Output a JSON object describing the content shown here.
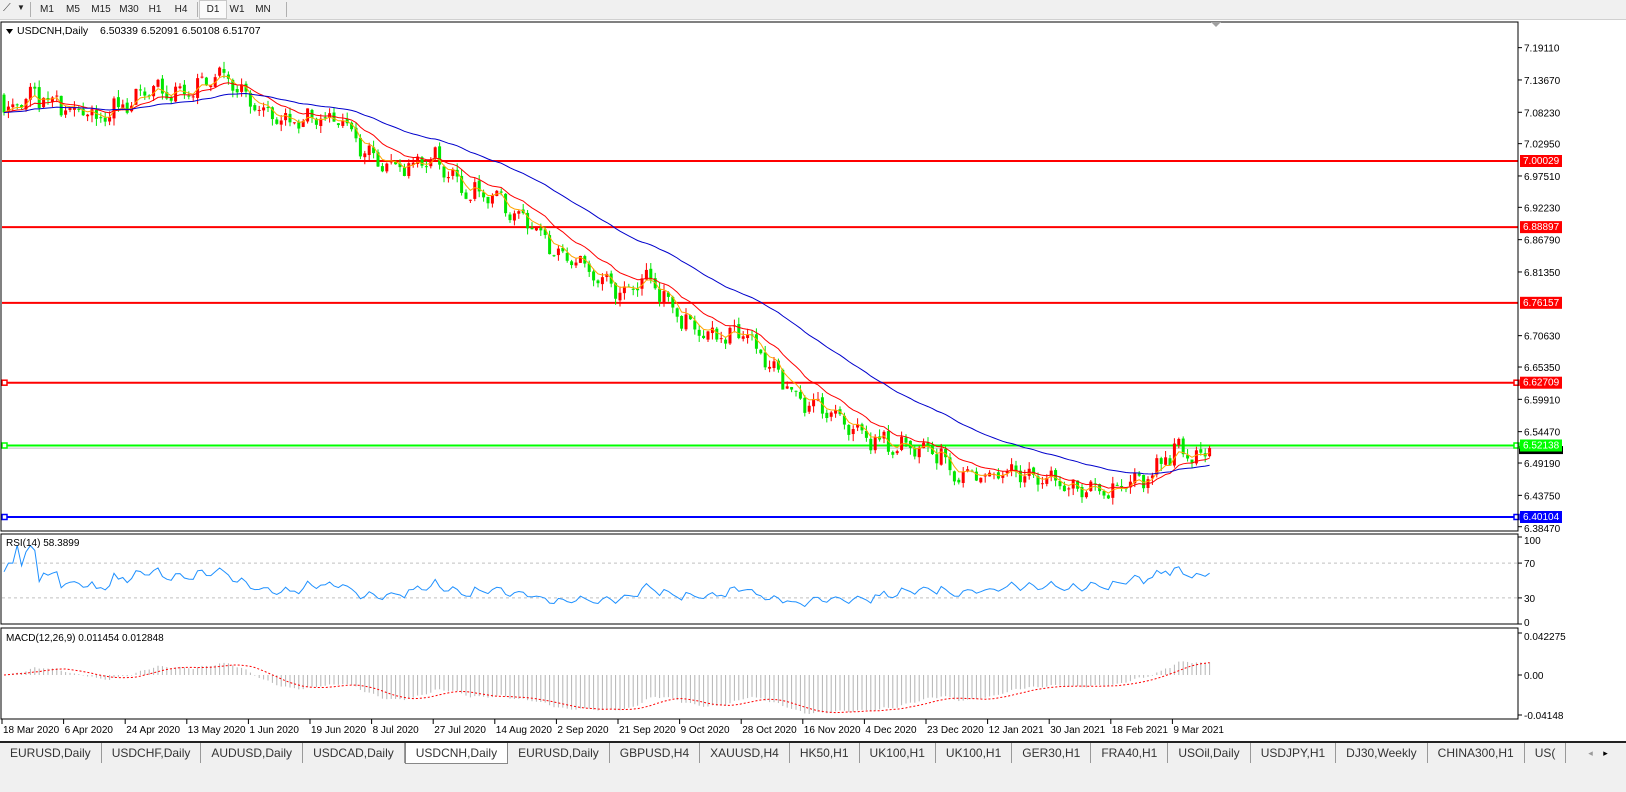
{
  "toolbar": {
    "cursor_icon": "crosshair-line-tool-icon",
    "timeframes": [
      "M1",
      "M5",
      "M15",
      "M30",
      "H1",
      "H4",
      "D1",
      "W1",
      "MN"
    ],
    "active_timeframe": "D1"
  },
  "chart_header": {
    "title": "USDCNH,Daily",
    "ohlc": "6.50339 6.52091 6.50108 6.51707"
  },
  "chart_data": {
    "type": "candlestick",
    "symbol": "USDCNH",
    "timeframe": "Daily",
    "last_bar": {
      "open": 6.50339,
      "high": 6.52091,
      "low": 6.50108,
      "close": 6.51707
    },
    "colors": {
      "bull": "#ff0000",
      "bear": "#00e600",
      "ma_fast": "#ffa500",
      "ma_mid": "#ff0000",
      "ma_slow": "#0000cc"
    },
    "approx_closes": [
      {
        "date": "18 Mar 2020",
        "close": 7.08
      },
      {
        "date": "27 Mar 2020",
        "close": 7.11
      },
      {
        "date": "6 Apr 2020",
        "close": 7.095
      },
      {
        "date": "15 Apr 2020",
        "close": 7.07
      },
      {
        "date": "24 Apr 2020",
        "close": 7.1
      },
      {
        "date": "5 May 2020",
        "close": 7.12
      },
      {
        "date": "13 May 2020",
        "close": 7.115
      },
      {
        "date": "22 May 2020",
        "close": 7.15
      },
      {
        "date": "1 Jun 2020",
        "close": 7.1
      },
      {
        "date": "10 Jun 2020",
        "close": 7.07
      },
      {
        "date": "19 Jun 2020",
        "close": 7.07
      },
      {
        "date": "30 Jun 2020",
        "close": 7.07
      },
      {
        "date": "8 Jul 2020",
        "close": 7.0
      },
      {
        "date": "17 Jul 2020",
        "close": 6.99
      },
      {
        "date": "27 Jul 2020",
        "close": 7.005
      },
      {
        "date": "5 Aug 2020",
        "close": 6.95
      },
      {
        "date": "14 Aug 2020",
        "close": 6.935
      },
      {
        "date": "25 Aug 2020",
        "close": 6.895
      },
      {
        "date": "2 Sep 2020",
        "close": 6.84
      },
      {
        "date": "11 Sep 2020",
        "close": 6.82
      },
      {
        "date": "21 Sep 2020",
        "close": 6.78
      },
      {
        "date": "30 Sep 2020",
        "close": 6.8
      },
      {
        "date": "9 Oct 2020",
        "close": 6.735
      },
      {
        "date": "20 Oct 2020",
        "close": 6.7
      },
      {
        "date": "28 Oct 2020",
        "close": 6.715
      },
      {
        "date": "6 Nov 2020",
        "close": 6.645
      },
      {
        "date": "16 Nov 2020",
        "close": 6.595
      },
      {
        "date": "25 Nov 2020",
        "close": 6.575
      },
      {
        "date": "4 Dec 2020",
        "close": 6.535
      },
      {
        "date": "15 Dec 2020",
        "close": 6.52
      },
      {
        "date": "23 Dec 2020",
        "close": 6.525
      },
      {
        "date": "4 Jan 2021",
        "close": 6.47
      },
      {
        "date": "12 Jan 2021",
        "close": 6.47
      },
      {
        "date": "21 Jan 2021",
        "close": 6.48
      },
      {
        "date": "30 Jan 2021",
        "close": 6.46
      },
      {
        "date": "9 Feb 2021",
        "close": 6.445
      },
      {
        "date": "18 Feb 2021",
        "close": 6.44
      },
      {
        "date": "1 Mar 2021",
        "close": 6.465
      },
      {
        "date": "9 Mar 2021",
        "close": 6.515
      },
      {
        "date": "18 Mar 2021",
        "close": 6.505
      }
    ],
    "y_ticks": [
      "7.19110",
      "7.13670",
      "7.08230",
      "7.02950",
      "6.97510",
      "6.92230",
      "6.86790",
      "6.81350",
      "6.70630",
      "6.65350",
      "6.59910",
      "6.54470",
      "6.49190",
      "6.43750",
      "6.38470"
    ],
    "x_ticks": [
      "18 Mar 2020",
      "6 Apr 2020",
      "24 Apr 2020",
      "13 May 2020",
      "1 Jun 2020",
      "19 Jun 2020",
      "8 Jul 2020",
      "27 Jul 2020",
      "14 Aug 2020",
      "2 Sep 2020",
      "21 Sep 2020",
      "9 Oct 2020",
      "28 Oct 2020",
      "16 Nov 2020",
      "4 Dec 2020",
      "23 Dec 2020",
      "12 Jan 2021",
      "30 Jan 2021",
      "18 Feb 2021",
      "9 Mar 2021"
    ],
    "levels": [
      {
        "price": "7.00029",
        "color": "#ff0000"
      },
      {
        "price": "6.88897",
        "color": "#ff0000"
      },
      {
        "price": "6.76157",
        "color": "#ff0000"
      },
      {
        "price": "6.62709",
        "color": "#ff0000"
      },
      {
        "price": "6.52138",
        "color": "#00ff00"
      },
      {
        "price": "6.40104",
        "color": "#0000ff"
      }
    ],
    "rsi": {
      "label": "RSI(14) 58.3899",
      "ticks": [
        "100",
        "70",
        "30",
        "0"
      ],
      "color": "#1e90ff"
    },
    "macd": {
      "label": "MACD(12,26,9) 0.011454 0.012848",
      "ticks": [
        "0.042275",
        "0.00",
        "-0.04148"
      ],
      "signal_color": "#ff0000",
      "hist_color": "#b4b4b4"
    }
  },
  "tabs": [
    "EURUSD,Daily",
    "USDCHF,Daily",
    "AUDUSD,Daily",
    "USDCAD,Daily",
    "USDCNH,Daily",
    "EURUSD,Daily",
    "GBPUSD,H4",
    "XAUUSD,H4",
    "HK50,H1",
    "UK100,H1",
    "UK100,H1",
    "GER30,H1",
    "FRA40,H1",
    "USOil,Daily",
    "USDJPY,H1",
    "DJ30,Weekly",
    "CHINA300,H1",
    "US("
  ],
  "active_tab": 4,
  "tab_scroll": {
    "left": "◂",
    "right": "▸"
  }
}
